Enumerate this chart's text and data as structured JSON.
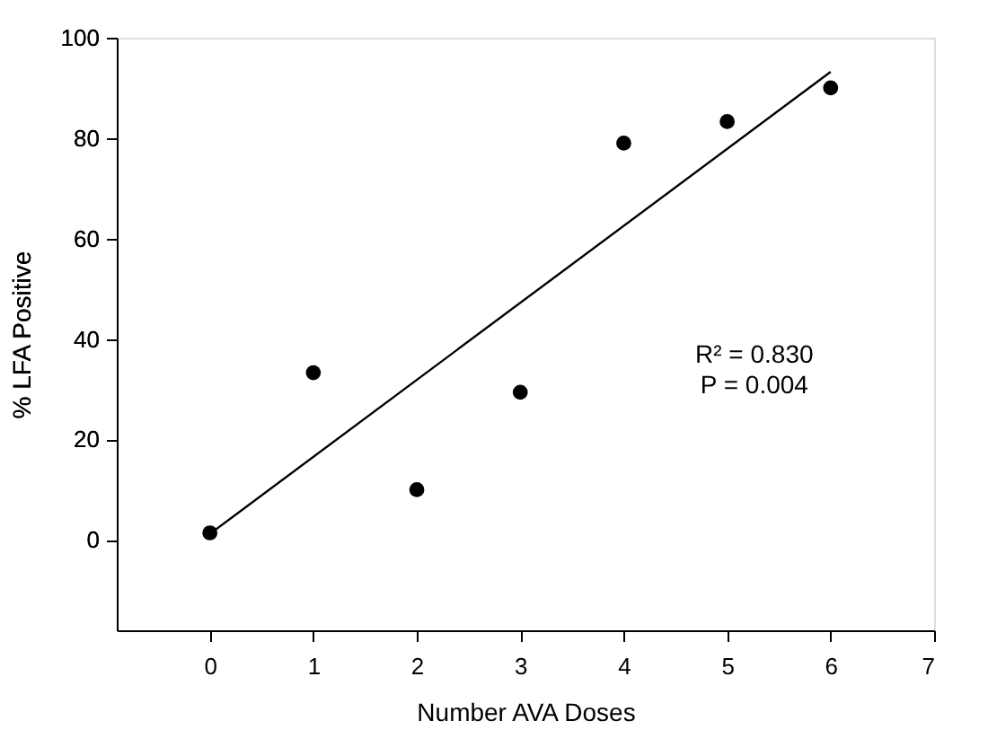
{
  "chart_data": {
    "type": "scatter",
    "xlabel": "Number AVA Doses",
    "ylabel": "% LFA Positive",
    "series": [
      {
        "color": "#000000",
        "marker": "circle",
        "x": [
          0,
          1,
          2,
          3,
          4,
          5,
          6
        ],
        "values": [
          1.4,
          33.3,
          10,
          29.4,
          79,
          83.3,
          90
        ]
      },
      {
        "type": "line",
        "color": "#000000",
        "line_style": "solid",
        "x": [
          0,
          6
        ],
        "values": [
          1.2,
          93.2
        ]
      }
    ],
    "xlim": [
      -0.9,
      7
    ],
    "xticks": [
      0,
      1,
      2,
      3,
      4,
      5,
      6,
      7
    ],
    "ylim": [
      -18,
      100
    ],
    "yticks": [
      0,
      20,
      40,
      60,
      80,
      100
    ],
    "annotations": [
      "R² = 0.830",
      "P = 0.004"
    ],
    "grid": false,
    "legend": false
  }
}
